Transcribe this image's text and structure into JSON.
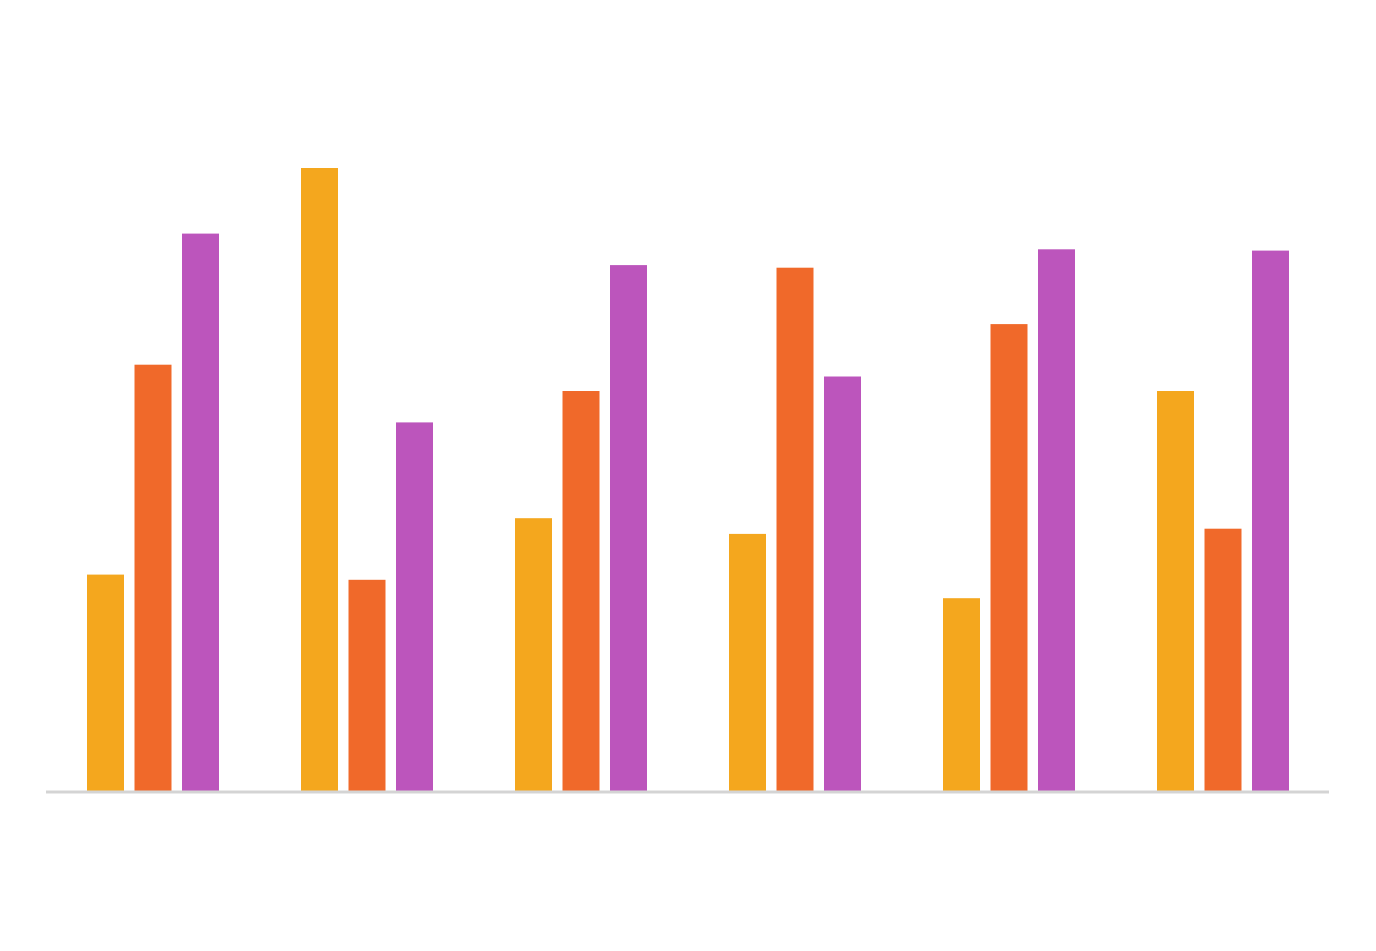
{
  "chart_data": {
    "type": "bar",
    "title": "",
    "xlabel": "",
    "ylabel": "",
    "ylim": [
      0,
      5.3
    ],
    "grid": false,
    "legend": "none",
    "categories": [
      "",
      "",
      "",
      "",
      "",
      ""
    ],
    "series": [
      {
        "color": "#F4A71E",
        "values": [
          1.65,
          4.75,
          2.08,
          1.96,
          1.47,
          3.05
        ],
        "labels": [
          "",
          "",
          "",
          "",
          "",
          ""
        ]
      },
      {
        "color": "#F0692A",
        "values": [
          3.25,
          1.61,
          3.05,
          3.99,
          3.56,
          2.0
        ],
        "labels": [
          "",
          "",
          "",
          "",
          "",
          ""
        ]
      },
      {
        "color": "#BC55BC",
        "values": [
          4.25,
          2.81,
          4.01,
          3.16,
          4.13,
          4.12
        ],
        "labels": [
          "",
          "",
          "",
          "",
          "",
          ""
        ]
      }
    ]
  }
}
